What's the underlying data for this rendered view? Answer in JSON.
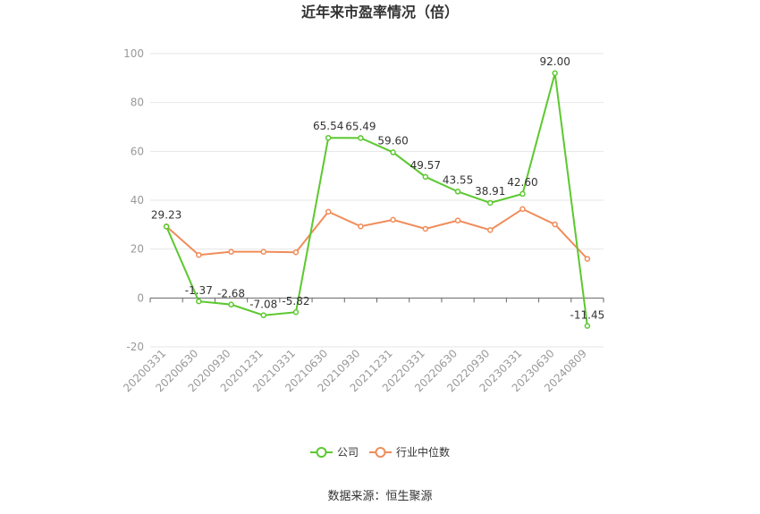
{
  "chart_data": {
    "type": "line",
    "title": "近年来市盈率情况（倍）",
    "categories": [
      "20200331",
      "20200630",
      "20200930",
      "20201231",
      "20210331",
      "20210630",
      "20210930",
      "20211231",
      "20220331",
      "20220630",
      "20220930",
      "20230331",
      "20230630",
      "20240809"
    ],
    "series": [
      {
        "name": "公司",
        "color": "#5cc82f",
        "values": [
          29.23,
          -1.37,
          -2.68,
          -7.08,
          -5.82,
          65.54,
          65.49,
          59.6,
          49.57,
          43.55,
          38.91,
          42.6,
          92.0,
          -11.45
        ],
        "labels": [
          "29.23",
          "-1.37",
          "-2.68",
          "-7.08",
          "-5.82",
          "65.54",
          "65.49",
          "59.60",
          "49.57",
          "43.55",
          "38.91",
          "42.60",
          "92.00",
          "-11.45"
        ]
      },
      {
        "name": "行业中位数",
        "color": "#f08c5a",
        "values": [
          29.3,
          17.6,
          18.9,
          18.9,
          18.7,
          35.3,
          29.3,
          32.0,
          28.3,
          31.7,
          27.8,
          36.4,
          30.1,
          16.0
        ]
      }
    ],
    "ylim": [
      -20,
      100
    ],
    "yticks": [
      -20,
      0,
      20,
      40,
      60,
      80,
      100
    ],
    "grid": true,
    "legend": "bottom-center"
  },
  "source": "数据来源：恒生聚源"
}
